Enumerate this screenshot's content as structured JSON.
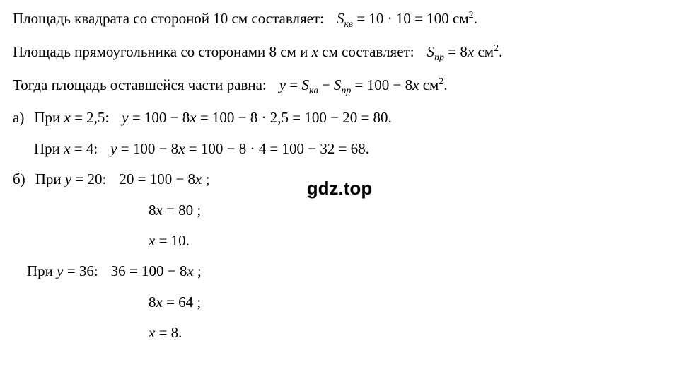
{
  "lines": {
    "l1_text": "Площадь квадрата со стороной 10 см составляет:",
    "l1_math": "S",
    "l1_sub": "кв",
    "l1_eq": " = 10 · 10 = 100 ",
    "l1_unit": "см",
    "l1_sup": "2",
    "l1_dot": ".",
    "l2_text": "Площадь прямоугольника со сторонами 8 см и ",
    "l2_x": "x",
    "l2_text2": " см составляет:",
    "l2_math": "S",
    "l2_sub": "пр",
    "l2_eq": " = 8",
    "l2_x2": "x",
    "l2_unit": " см",
    "l2_sup": "2",
    "l2_dot": ".",
    "l3_text": "Тогда площадь оставшейся части равна:",
    "l3_y": "y",
    "l3_eq1": " = ",
    "l3_s1": "S",
    "l3_sub1": "кв",
    "l3_minus": " − ",
    "l3_s2": "S",
    "l3_sub2": "пр",
    "l3_eq2": " = 100 − 8",
    "l3_x": "x",
    "l3_unit": " см",
    "l3_sup": "2",
    "l3_dot": ".",
    "a_label": "а)",
    "a1_pri": "При ",
    "a1_x": "x",
    "a1_val": " = 2,5:",
    "a1_y": "y",
    "a1_calc": " = 100 − 8",
    "a1_x2": "x",
    "a1_rest": " = 100 − 8 · 2,5 = 100 − 20 = 80",
    "a1_dot": ".",
    "a2_pri": "При ",
    "a2_x": "x",
    "a2_val": " = 4:",
    "a2_y": "y",
    "a2_calc": " = 100 − 8",
    "a2_x2": "x",
    "a2_rest": " = 100 − 8 · 4 = 100 − 32 = 68",
    "a2_dot": ".",
    "b_label": "б)",
    "b1_pri": "При ",
    "b1_y": "y",
    "b1_val": " = 20:",
    "b1_eq": "20 = 100 − 8",
    "b1_x": "x",
    "b1_semi": " ;",
    "b2_lhs": "8",
    "b2_x": "x",
    "b2_eq": " = 80 ;",
    "b3_x": "x",
    "b3_eq": " = 10",
    "b3_dot": ".",
    "b4_pri": "При ",
    "b4_y": "y",
    "b4_val": " = 36:",
    "b4_eq": "36 = 100 − 8",
    "b4_x": "x",
    "b4_semi": " ;",
    "b5_lhs": "8",
    "b5_x": "x",
    "b5_eq": " = 64 ;",
    "b6_x": "x",
    "b6_eq": " = 8",
    "b6_dot": "."
  },
  "watermark": "gdz.top",
  "styling": {
    "background_color": "#ffffff",
    "text_color": "#000000",
    "font_family": "Times New Roman",
    "font_size_pt": 16,
    "watermark_font": "Arial",
    "watermark_fontsize": 26,
    "watermark_weight": "bold"
  }
}
